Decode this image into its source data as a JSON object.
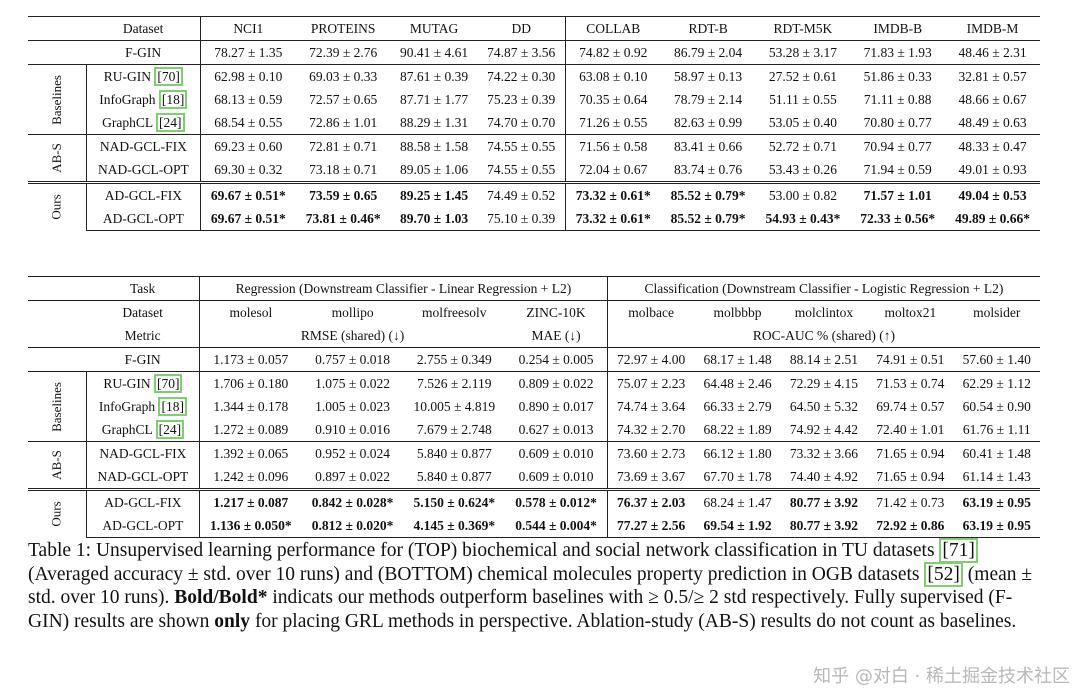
{
  "top": {
    "header": [
      "Dataset",
      "NCI1",
      "PROTEINS",
      "MUTAG",
      "DD",
      "COLLAB",
      "RDT-B",
      "RDT-M5K",
      "IMDB-B",
      "IMDB-M"
    ],
    "fgin": {
      "name": "F-GIN",
      "vals": [
        "78.27 ± 1.35",
        "72.39 ± 2.76",
        "90.41 ± 4.61",
        "74.87 ± 3.56",
        "74.82 ± 0.92",
        "86.79 ± 2.04",
        "53.28 ± 3.17",
        "71.83 ± 1.93",
        "48.46 ± 2.31"
      ]
    },
    "groups": [
      {
        "label": "Baselines",
        "rows": [
          {
            "name": "RU-GIN ",
            "cite": "[70]",
            "vals": [
              "62.98 ± 0.10",
              "69.03 ± 0.33",
              "87.61 ± 0.39",
              "74.22 ± 0.30",
              "63.08 ± 0.10",
              "58.97 ± 0.13",
              "27.52 ± 0.61",
              "51.86 ± 0.33",
              "32.81 ± 0.57"
            ]
          },
          {
            "name": "InfoGraph ",
            "cite": "[18]",
            "vals": [
              "68.13 ± 0.59",
              "72.57 ± 0.65",
              "87.71 ± 1.77",
              "75.23 ± 0.39",
              "70.35 ± 0.64",
              "78.79 ± 2.14",
              "51.11 ± 0.55",
              "71.11 ± 0.88",
              "48.66 ± 0.67"
            ]
          },
          {
            "name": "GraphCL ",
            "cite": "[24]",
            "vals": [
              "68.54 ± 0.55",
              "72.86 ± 1.01",
              "88.29 ± 1.31",
              "74.70 ± 0.70",
              "71.26 ± 0.55",
              "82.63 ± 0.99",
              "53.05 ± 0.40",
              "70.80 ± 0.77",
              "48.49 ± 0.63"
            ]
          }
        ]
      },
      {
        "label": "AB-S",
        "rows": [
          {
            "name": "NAD-GCL-FIX",
            "vals": [
              "69.23 ± 0.60",
              "72.81 ± 0.71",
              "88.58 ± 1.58",
              "74.55 ± 0.55",
              "71.56 ± 0.58",
              "83.41 ± 0.66",
              "52.72 ± 0.71",
              "70.94 ± 0.77",
              "48.33 ± 0.47"
            ]
          },
          {
            "name": "NAD-GCL-OPT",
            "vals": [
              "69.30 ± 0.32",
              "73.18 ± 0.71",
              "89.05 ± 1.06",
              "74.55 ± 0.55",
              "72.04 ± 0.67",
              "83.74 ± 0.76",
              "53.43 ± 0.26",
              "71.94 ± 0.59",
              "49.01 ± 0.93"
            ]
          }
        ]
      },
      {
        "label": "Ours",
        "rows": [
          {
            "name": "AD-GCL-FIX",
            "vals": [
              "69.67 ± 0.51*",
              "73.59 ± 0.65",
              "89.25 ± 1.45",
              "74.49 ± 0.52",
              "73.32 ± 0.61*",
              "85.52 ± 0.79*",
              "53.00 ± 0.82",
              "71.57 ± 1.01",
              "49.04 ± 0.53"
            ],
            "bold": [
              true,
              true,
              true,
              false,
              true,
              true,
              false,
              true,
              true
            ]
          },
          {
            "name": "AD-GCL-OPT",
            "vals": [
              "69.67 ± 0.51*",
              "73.81 ± 0.46*",
              "89.70 ± 1.03",
              "75.10 ± 0.39",
              "73.32 ± 0.61*",
              "85.52 ± 0.79*",
              "54.93 ± 0.43*",
              "72.33 ± 0.56*",
              "49.89 ± 0.66*"
            ],
            "bold": [
              true,
              true,
              true,
              false,
              true,
              true,
              true,
              true,
              true
            ]
          }
        ]
      }
    ]
  },
  "bottom": {
    "task_label": "Task",
    "task_reg": "Regression (Downstream Classifier - Linear Regression + L2)",
    "task_cls": "Classification (Downstream Classifier - Logistic Regression + L2)",
    "header": [
      "Dataset",
      "molesol",
      "mollipo",
      "molfreesolv",
      "ZINC-10K",
      "molbace",
      "molbbbp",
      "molclintox",
      "moltox21",
      "molsider"
    ],
    "metric_label": "Metric",
    "metric_rmse": "RMSE (shared) (↓)",
    "metric_mae": "MAE (↓)",
    "metric_roc": "ROC-AUC % (shared) (↑)",
    "fgin": {
      "name": "F-GIN",
      "vals": [
        "1.173 ± 0.057",
        "0.757 ± 0.018",
        "2.755 ± 0.349",
        "0.254 ± 0.005",
        "72.97 ± 4.00",
        "68.17 ± 1.48",
        "88.14 ± 2.51",
        "74.91 ± 0.51",
        "57.60 ± 1.40"
      ]
    },
    "groups": [
      {
        "label": "Baselines",
        "rows": [
          {
            "name": "RU-GIN ",
            "cite": "[70]",
            "vals": [
              "1.706 ± 0.180",
              "1.075 ± 0.022",
              "7.526 ± 2.119",
              "0.809 ± 0.022",
              "75.07 ± 2.23",
              "64.48 ± 2.46",
              "72.29 ± 4.15",
              "71.53 ± 0.74",
              "62.29 ± 1.12"
            ]
          },
          {
            "name": "InfoGraph ",
            "cite": "[18]",
            "vals": [
              "1.344 ± 0.178",
              "1.005 ± 0.023",
              "10.005 ± 4.819",
              "0.890 ± 0.017",
              "74.74 ± 3.64",
              "66.33 ± 2.79",
              "64.50 ± 5.32",
              "69.74 ± 0.57",
              "60.54 ± 0.90"
            ]
          },
          {
            "name": "GraphCL ",
            "cite": "[24]",
            "vals": [
              "1.272 ± 0.089",
              "0.910 ± 0.016",
              "7.679 ± 2.748",
              "0.627 ± 0.013",
              "74.32 ± 2.70",
              "68.22 ± 1.89",
              "74.92 ± 4.42",
              "72.40 ± 1.01",
              "61.76 ± 1.11"
            ]
          }
        ]
      },
      {
        "label": "AB-S",
        "rows": [
          {
            "name": "NAD-GCL-FIX",
            "vals": [
              "1.392 ± 0.065",
              "0.952 ± 0.024",
              "5.840 ± 0.877",
              "0.609 ± 0.010",
              "73.60 ± 2.73",
              "66.12 ± 1.80",
              "73.32 ± 3.66",
              "71.65 ± 0.94",
              "60.41 ± 1.48"
            ]
          },
          {
            "name": "NAD-GCL-OPT",
            "vals": [
              "1.242 ± 0.096",
              "0.897 ± 0.022",
              "5.840 ± 0.877",
              "0.609 ± 0.010",
              "73.69 ± 3.67",
              "67.70 ± 1.78",
              "74.40 ± 4.92",
              "71.65 ± 0.94",
              "61.14 ± 1.43"
            ]
          }
        ]
      },
      {
        "label": "Ours",
        "rows": [
          {
            "name": "AD-GCL-FIX",
            "vals": [
              "1.217 ± 0.087",
              "0.842 ± 0.028*",
              "5.150 ± 0.624*",
              "0.578 ± 0.012*",
              "76.37 ± 2.03",
              "68.24 ± 1.47",
              "80.77 ± 3.92",
              "71.42 ± 0.73",
              "63.19 ± 0.95"
            ],
            "bold": [
              true,
              true,
              true,
              true,
              true,
              false,
              true,
              false,
              true
            ]
          },
          {
            "name": "AD-GCL-OPT",
            "vals": [
              "1.136 ± 0.050*",
              "0.812 ± 0.020*",
              "4.145 ± 0.369*",
              "0.544 ± 0.004*",
              "77.27 ± 2.56",
              "69.54 ± 1.92",
              "80.77 ± 3.92",
              "72.92 ± 0.86",
              "63.19 ± 0.95"
            ],
            "bold": [
              true,
              true,
              true,
              true,
              true,
              true,
              true,
              true,
              true
            ]
          }
        ]
      }
    ]
  },
  "caption": {
    "p1": "Table 1: Unsupervised learning performance for (TOP) biochemical and social network classification in TU datasets ",
    "c1": "[71]",
    "p2": " (Averaged accuracy ± std. over 10 runs) and (BOTTOM) chemical molecules property prediction in OGB datasets ",
    "c2": "[52]",
    "p3": " (mean ± std. over 10 runs). ",
    "bold1": "Bold/Bold*",
    "p4": " indicats our methods outperform baselines with ≥ 0.5/≥ 2 std respectively. Fully supervised (F-GIN) results are shown ",
    "bold2": "only",
    "p5": " for placing GRL methods in perspective. Ablation-study (AB-S) results do not count as baselines."
  },
  "watermark": "知乎 @对白 · 稀土掘金技术社区"
}
